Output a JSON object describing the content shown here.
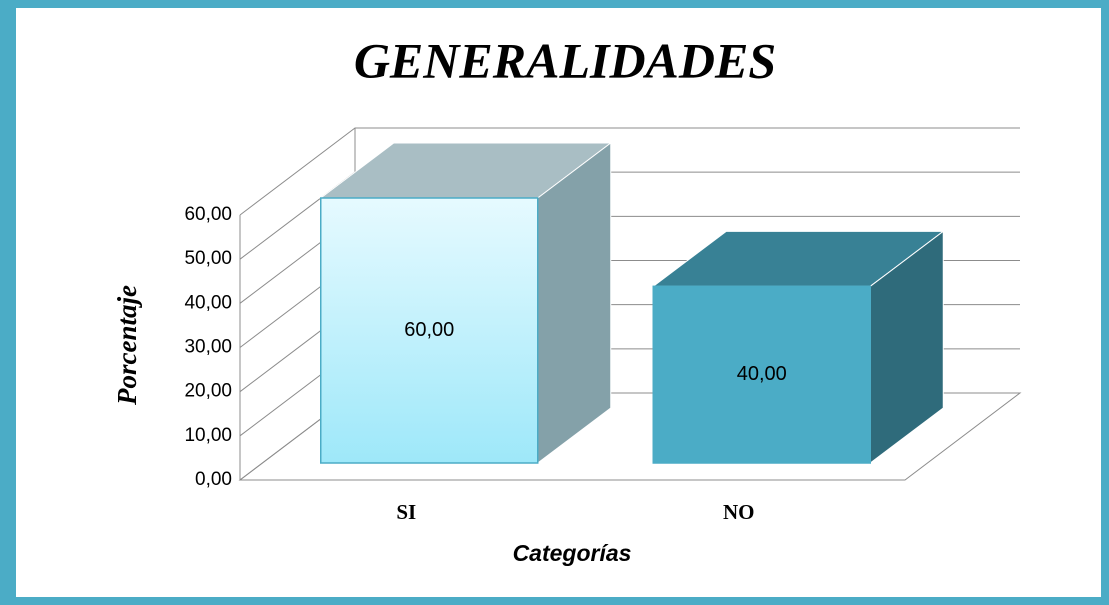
{
  "chart_data": {
    "type": "bar3d",
    "title": "GENERALIDADES",
    "xlabel": "Categorías",
    "ylabel": "Porcentaje",
    "categories": [
      "SI",
      "NO"
    ],
    "values": [
      60,
      40
    ],
    "value_labels": [
      "60,00",
      "40,00"
    ],
    "colors": [
      "#b3ecf7",
      "#4bacc6"
    ],
    "ylim": [
      0,
      60
    ],
    "yticks": [
      {
        "value": 0,
        "label": "0,00"
      },
      {
        "value": 10,
        "label": "10,00"
      },
      {
        "value": 20,
        "label": "20,00"
      },
      {
        "value": 30,
        "label": "30,00"
      },
      {
        "value": 40,
        "label": "40,00"
      },
      {
        "value": 50,
        "label": "50,00"
      },
      {
        "value": 60,
        "label": "60,00"
      }
    ],
    "grid": true
  }
}
